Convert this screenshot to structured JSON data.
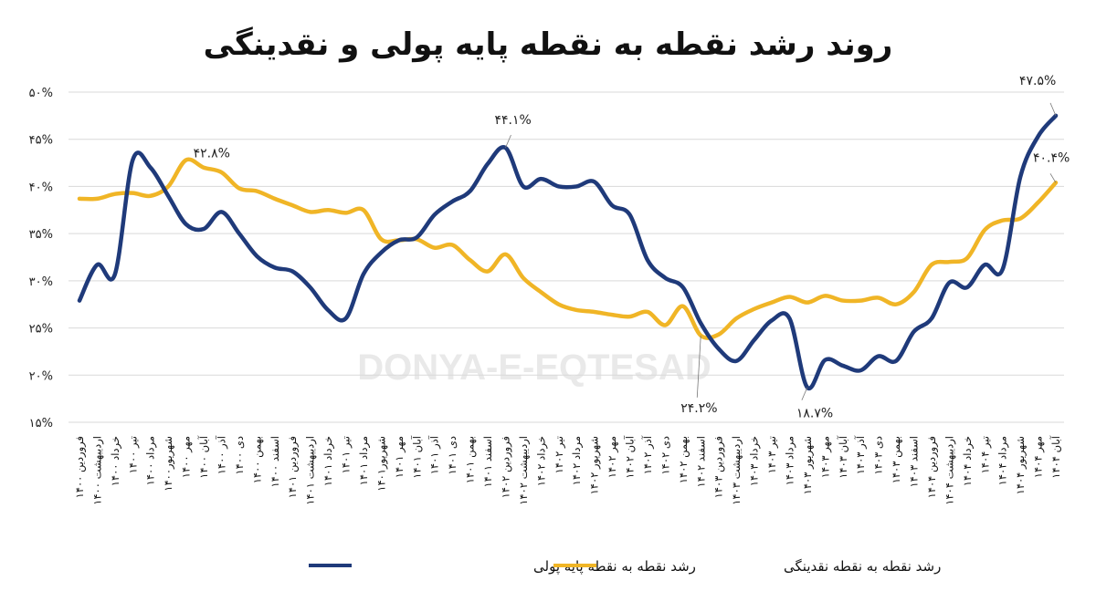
{
  "chart_data": {
    "type": "line",
    "title": "روند رشد نقطه به نقطه پایه پولی و نقدینگی",
    "watermark": "DONYA-E-EQTESAD",
    "xlabel": "",
    "ylabel": "",
    "ylim": [
      15,
      50
    ],
    "yticks": [
      15,
      20,
      25,
      30,
      35,
      40,
      45,
      50
    ],
    "ytick_labels": [
      "۱۵%",
      "۲۰%",
      "۲۵%",
      "۳۰%",
      "۳۵%",
      "۴۰%",
      "۴۵%",
      "۵۰%"
    ],
    "grid": true,
    "legend_position": "bottom",
    "categories": [
      "فروردین ۱۴۰۰",
      "اردیبهشت ۱۴۰۰",
      "خرداد ۱۴۰۰",
      "تیر ۱۴۰۰",
      "مرداد ۱۴۰۰",
      "شهریور۱۴۰۰",
      "مهر ۱۴۰۰",
      "آبان ۱۴۰۰",
      "آذر ۱۴۰۰",
      "دی ۱۴۰۰",
      "بهمن ۱۴۰۰",
      "اسفند ۱۴۰۰",
      "فروردین ۱۴۰۱",
      "اردیبهشت ۱۴۰۱",
      "خرداد ۱۴۰۱",
      "تیر ۱۴۰۱",
      "مرداد ۱۴۰۱",
      "شهریور۱۴۰۱",
      "مهر ۱۴۰۱",
      "آبان ۱۴۰۱",
      "آذر ۱۴۰۱",
      "دی ۱۴۰۱",
      "بهمن ۱۴۰۱",
      "اسفند ۱۴۰۱",
      "فروردین ۱۴۰۲",
      "اردیبهشت ۱۴۰۲",
      "خرداد ۱۴۰۲",
      "تیر ۱۴۰۲",
      "مرداد ۱۴۰۲",
      "شهریور ۱۴۰۲",
      "مهر ۱۴۰۲",
      "آبان ۱۴۰۲",
      "آذر ۱۴۰۲",
      "دی ۱۴۰۲",
      "بهمن ۱۴۰۲",
      "اسفند ۱۴۰۲",
      "فروردین ۱۴۰۳",
      "اردیبهشت ۱۴۰۳",
      "خرداد ۱۴۰۳",
      "تیر ۱۴۰۳",
      "مرداد ۱۴۰۳",
      "شهریور ۱۴۰۳",
      "مهر ۱۴۰۳",
      "آبان ۱۴۰۳",
      "آذر ۱۴۰۳",
      "دی ۱۴۰۳",
      "بهمن ۱۴۰۳",
      "اسفند ۱۴۰۳",
      "فروردین ۱۴۰۴",
      "اردیبهشت ۱۴۰۴",
      "خرداد ۱۴۰۴",
      "تیر ۱۴۰۴",
      "مرداد ۱۴۰۴",
      "شهریور ۱۴۰۴",
      "مهر ۱۴۰۴",
      "آبان ۱۴۰۴"
    ],
    "series": [
      {
        "name": "رشد نقطه به نقطه پایه پولی",
        "color": "#1f3a7a",
        "values": [
          27.9,
          31.7,
          30.7,
          42.8,
          42.0,
          39.0,
          36.0,
          35.5,
          37.3,
          35.0,
          32.6,
          31.4,
          31.0,
          29.3,
          26.9,
          26.0,
          30.7,
          33.0,
          34.3,
          34.6,
          37.0,
          38.4,
          39.5,
          42.4,
          44.1,
          40.0,
          40.8,
          40.0,
          40.0,
          40.5,
          38.0,
          37.0,
          32.2,
          30.3,
          29.3,
          25.5,
          22.8,
          21.5,
          23.7,
          25.8,
          26.0,
          18.7,
          21.6,
          21.0,
          20.5,
          22.0,
          21.5,
          24.6,
          26.0,
          29.8,
          29.3,
          31.7,
          31.2,
          41.0,
          45.3,
          47.5
        ]
      },
      {
        "name": "رشد نقطه به نقطه نقدینگی",
        "color": "#f0b526",
        "values": [
          38.7,
          38.7,
          39.2,
          39.3,
          39.0,
          40.0,
          42.8,
          42.0,
          41.5,
          39.8,
          39.5,
          38.7,
          38.0,
          37.3,
          37.5,
          37.2,
          37.5,
          34.4,
          34.3,
          34.4,
          33.5,
          33.8,
          32.2,
          31.0,
          32.8,
          30.3,
          28.8,
          27.5,
          26.9,
          26.7,
          26.4,
          26.2,
          26.7,
          25.3,
          27.3,
          24.2,
          24.3,
          26.0,
          27.0,
          27.7,
          28.3,
          27.7,
          28.4,
          27.9,
          27.9,
          28.2,
          27.5,
          28.8,
          31.7,
          32.0,
          32.4,
          35.4,
          36.4,
          36.6,
          38.3,
          40.4
        ]
      }
    ],
    "annotations": [
      {
        "series": 1,
        "index": 6,
        "label": "۴۲.۸%"
      },
      {
        "series": 0,
        "index": 24,
        "label": "۴۴.۱%"
      },
      {
        "series": 1,
        "index": 35,
        "label": "۲۴.۲%"
      },
      {
        "series": 0,
        "index": 41,
        "label": "۱۸.۷%"
      },
      {
        "series": 0,
        "index": 55,
        "label": "۴۷.۵%"
      },
      {
        "series": 1,
        "index": 55,
        "label": "۴۰.۴%"
      }
    ]
  }
}
